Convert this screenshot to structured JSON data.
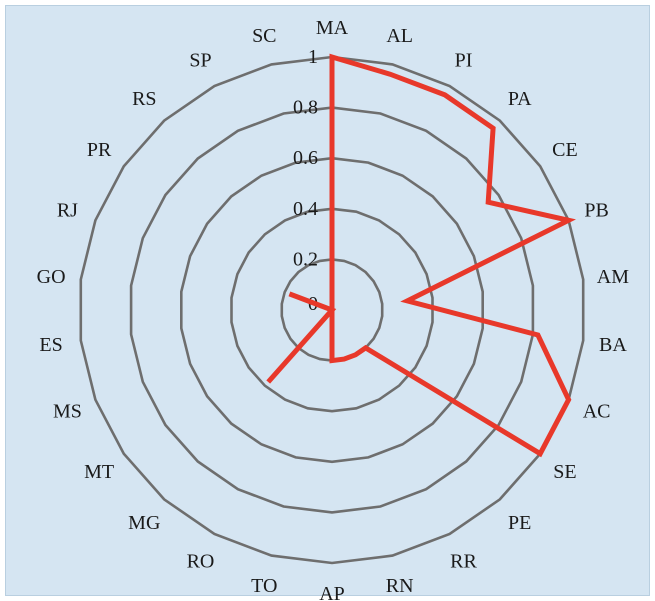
{
  "chart_data": {
    "type": "radar",
    "title": "",
    "categories": [
      "MA",
      "AL",
      "PI",
      "PA",
      "CE",
      "PB",
      "AM",
      "BA",
      "AC",
      "SE",
      "PE",
      "RR",
      "RN",
      "AP",
      "TO",
      "RO",
      "MG",
      "MT",
      "MS",
      "ES",
      "GO",
      "RJ",
      "PR",
      "RS",
      "SP",
      "SC"
    ],
    "series": [
      {
        "values": [
          1.0,
          0.96,
          0.96,
          0.96,
          0.75,
          1.0,
          0.3,
          0.82,
          1.0,
          1.0,
          0.2,
          0.2,
          0.2,
          0.2,
          0.0,
          0.0,
          0.38,
          0.0,
          0.0,
          0.0,
          0.0,
          0.18,
          0.0,
          0.0,
          0.0,
          0.0
        ]
      }
    ],
    "r_ticks": [
      "0",
      "0.2",
      "0.4",
      "0.6",
      "0.8",
      "1"
    ],
    "rlim": [
      0,
      1
    ],
    "rings": [
      0.2,
      0.4,
      0.6,
      0.8,
      1.0
    ],
    "grid": true,
    "colors": {
      "series": "#e8382a",
      "grid": "#6e6e6e",
      "background": "#d5e5f2"
    }
  }
}
